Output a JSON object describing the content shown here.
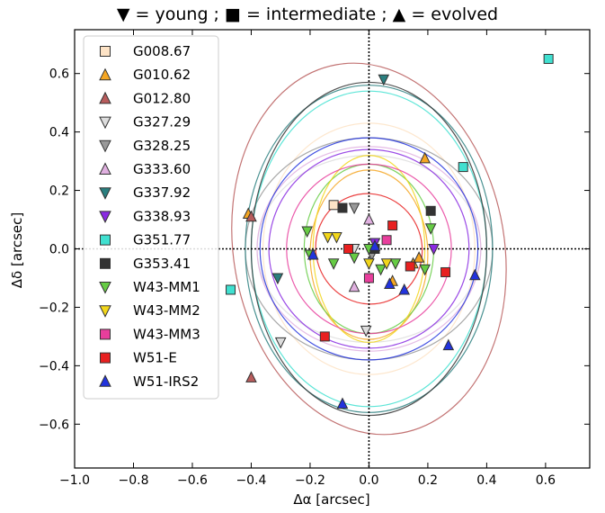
{
  "chart_data": {
    "type": "scatter",
    "title": "▼ = young ; ■ = intermediate ; ▲ = evolved",
    "xlabel": "Δα [arcsec]",
    "ylabel": "Δδ [arcsec]",
    "xlim": [
      -1.0,
      0.75
    ],
    "ylim": [
      -0.75,
      0.75
    ],
    "xticks": [
      -1.0,
      -0.8,
      -0.6,
      -0.4,
      -0.2,
      0.0,
      0.2,
      0.4,
      0.6
    ],
    "xtick_labels": [
      "−1.0",
      "−0.8",
      "−0.6",
      "−0.4",
      "−0.2",
      "0.0",
      "0.2",
      "0.4",
      "0.6"
    ],
    "yticks": [
      -0.6,
      -0.4,
      -0.2,
      0.0,
      0.2,
      0.4,
      0.6
    ],
    "ytick_labels": [
      "−0.6",
      "−0.4",
      "−0.2",
      "0.0",
      "0.2",
      "0.4",
      "0.6"
    ],
    "grid": false,
    "legend_position": "upper-left",
    "crosshair_at": [
      0,
      0
    ],
    "series": [
      {
        "name": "G008.67",
        "marker": "square",
        "color": "#fde3c6",
        "points": [
          [
            -0.12,
            0.15
          ]
        ],
        "ellipse": {
          "cx": 0.0,
          "cy": 0.0,
          "rx": 0.36,
          "ry": 0.43,
          "angle": 0
        }
      },
      {
        "name": "G010.62",
        "marker": "triangle-up",
        "color": "#f5a623",
        "points": [
          [
            -0.41,
            0.12
          ],
          [
            0.19,
            0.31
          ],
          [
            0.08,
            -0.11
          ],
          [
            0.17,
            -0.03
          ],
          [
            0.15,
            -0.05
          ]
        ],
        "ellipse": {
          "cx": 0.0,
          "cy": -0.02,
          "rx": 0.2,
          "ry": 0.29,
          "angle": 0
        }
      },
      {
        "name": "G012.80",
        "marker": "triangle-up",
        "color": "#b85c5c",
        "points": [
          [
            -0.4,
            0.11
          ],
          [
            -0.4,
            -0.44
          ]
        ],
        "ellipse": {
          "cx": 0.0,
          "cy": 0.0,
          "rx": 0.46,
          "ry": 0.64,
          "angle": -10
        }
      },
      {
        "name": "G327.29",
        "marker": "triangle-down",
        "color": "#dddddd",
        "points": [
          [
            -0.3,
            -0.32
          ],
          [
            -0.01,
            -0.28
          ],
          [
            -0.05,
            0.0
          ]
        ],
        "ellipse": {
          "cx": 0.0,
          "cy": 0.0,
          "rx": 0.38,
          "ry": 0.32,
          "angle": 0
        }
      },
      {
        "name": "G328.25",
        "marker": "triangle-down",
        "color": "#999999",
        "points": [
          [
            -0.05,
            0.14
          ],
          [
            0.01,
            -0.02
          ]
        ],
        "ellipse": {
          "cx": 0.0,
          "cy": 0.0,
          "rx": 0.42,
          "ry": 0.38,
          "angle": 0
        }
      },
      {
        "name": "G333.60",
        "marker": "triangle-up",
        "color": "#e0b0e0",
        "points": [
          [
            -0.05,
            -0.13
          ],
          [
            0.0,
            0.1
          ]
        ],
        "ellipse": {
          "cx": 0.0,
          "cy": 0.0,
          "rx": 0.38,
          "ry": 0.35,
          "angle": 0
        }
      },
      {
        "name": "G337.92",
        "marker": "triangle-down",
        "color": "#2a7f7f",
        "points": [
          [
            0.05,
            0.58
          ],
          [
            -0.31,
            -0.1
          ]
        ],
        "ellipse": {
          "cx": 0.0,
          "cy": 0.0,
          "rx": 0.42,
          "ry": 0.56,
          "angle": 0
        }
      },
      {
        "name": "G338.93",
        "marker": "triangle-down",
        "color": "#8a2be2",
        "points": [
          [
            0.22,
            0.0
          ],
          [
            0.02,
            0.02
          ]
        ],
        "ellipse": {
          "cx": 0.0,
          "cy": 0.0,
          "rx": 0.34,
          "ry": 0.34,
          "angle": 0
        }
      },
      {
        "name": "G351.77",
        "marker": "square",
        "color": "#40e0d0",
        "points": [
          [
            0.61,
            0.65
          ],
          [
            0.32,
            0.28
          ],
          [
            -0.47,
            -0.14
          ]
        ],
        "ellipse": {
          "cx": 0.0,
          "cy": 0.0,
          "rx": 0.4,
          "ry": 0.54,
          "angle": 0
        }
      },
      {
        "name": "G353.41",
        "marker": "square",
        "color": "#333333",
        "points": [
          [
            0.21,
            0.13
          ],
          [
            -0.09,
            0.14
          ],
          [
            0.02,
            0.0
          ]
        ],
        "ellipse": {
          "cx": 0.0,
          "cy": 0.0,
          "rx": 0.4,
          "ry": 0.57,
          "angle": 0
        }
      },
      {
        "name": "W43-MM1",
        "marker": "triangle-down",
        "color": "#66cc44",
        "points": [
          [
            -0.21,
            0.06
          ],
          [
            -0.2,
            -0.02
          ],
          [
            -0.12,
            -0.05
          ],
          [
            -0.05,
            -0.03
          ],
          [
            0.04,
            -0.07
          ],
          [
            0.09,
            -0.05
          ],
          [
            0.19,
            -0.07
          ],
          [
            0.21,
            0.07
          ],
          [
            0.0,
            0.0
          ]
        ],
        "ellipse": {
          "cx": 0.0,
          "cy": 0.0,
          "rx": 0.22,
          "ry": 0.29,
          "angle": 0
        }
      },
      {
        "name": "W43-MM2",
        "marker": "triangle-down",
        "color": "#f2d61a",
        "points": [
          [
            -0.14,
            0.04
          ],
          [
            -0.11,
            0.04
          ],
          [
            0.0,
            -0.05
          ],
          [
            0.06,
            -0.05
          ]
        ],
        "ellipse": {
          "cx": 0.0,
          "cy": 0.0,
          "rx": 0.19,
          "ry": 0.32,
          "angle": 0
        }
      },
      {
        "name": "W43-MM3",
        "marker": "square",
        "color": "#e83e9c",
        "points": [
          [
            0.0,
            -0.1
          ],
          [
            0.06,
            0.03
          ],
          [
            -0.07,
            0.0
          ]
        ],
        "ellipse": {
          "cx": 0.0,
          "cy": 0.0,
          "rx": 0.28,
          "ry": 0.29,
          "angle": 0
        }
      },
      {
        "name": "W51-E",
        "marker": "square",
        "color": "#e82020",
        "points": [
          [
            0.08,
            0.08
          ],
          [
            0.14,
            -0.06
          ],
          [
            0.26,
            -0.08
          ],
          [
            -0.07,
            0.0
          ],
          [
            -0.15,
            -0.3
          ]
        ],
        "ellipse": {
          "cx": 0.0,
          "cy": 0.0,
          "rx": 0.18,
          "ry": 0.19,
          "angle": -20
        }
      },
      {
        "name": "W51-IRS2",
        "marker": "triangle-up",
        "color": "#2233dd",
        "points": [
          [
            -0.19,
            -0.02
          ],
          [
            0.07,
            -0.12
          ],
          [
            0.12,
            -0.14
          ],
          [
            0.27,
            -0.33
          ],
          [
            0.36,
            -0.09
          ],
          [
            -0.09,
            -0.53
          ],
          [
            0.02,
            0.01
          ]
        ],
        "ellipse": {
          "cx": 0.0,
          "cy": 0.0,
          "rx": 0.37,
          "ry": 0.38,
          "angle": 0
        }
      }
    ]
  }
}
